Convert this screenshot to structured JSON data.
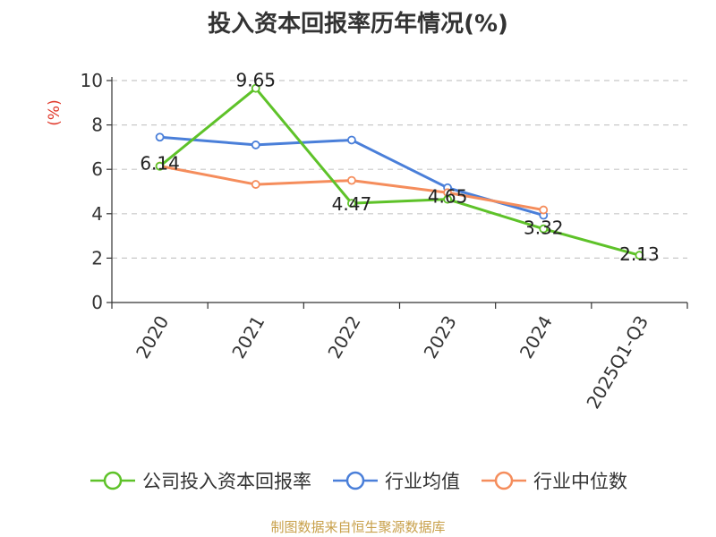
{
  "chart_data": {
    "type": "line",
    "title": "投入资本回报率历年情况(%)",
    "ylabel": "(%)",
    "xlabel": "",
    "categories": [
      "2020",
      "2021",
      "2022",
      "2023",
      "2024",
      "2025Q1-Q3"
    ],
    "ylim": [
      0,
      10
    ],
    "yticks": [
      0,
      2,
      4,
      6,
      8,
      10
    ],
    "grid": true,
    "legend_position": "bottom",
    "series": [
      {
        "name": "公司投入资本回报率",
        "color": "#5ec229",
        "values": [
          6.14,
          9.65,
          4.47,
          4.65,
          3.32,
          2.13
        ],
        "labels": [
          "6.14",
          "9.65",
          "4.47",
          "4.65",
          "3.32",
          "2.13"
        ]
      },
      {
        "name": "行业均值",
        "color": "#4a7fd9",
        "values": [
          7.45,
          7.1,
          7.32,
          5.17,
          3.93,
          null
        ]
      },
      {
        "name": "行业中位数",
        "color": "#f58d5c",
        "values": [
          6.15,
          5.32,
          5.5,
          4.95,
          4.17,
          null
        ]
      }
    ]
  },
  "source": "制图数据来自恒生聚源数据库"
}
